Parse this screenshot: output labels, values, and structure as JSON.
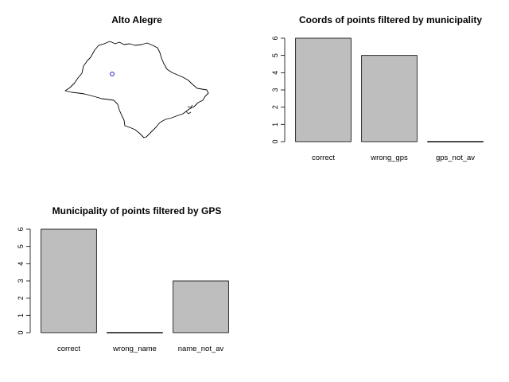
{
  "map_panel": {
    "title": "Alto Alegre"
  },
  "chart_data": [
    {
      "type": "bar",
      "title": "Coords of points filtered by municipality",
      "categories": [
        "correct",
        "wrong_gps",
        "gps_not_av"
      ],
      "values": [
        6,
        5,
        0
      ],
      "ylim": [
        0,
        6
      ],
      "yticks": [
        "0",
        "1",
        "2",
        "3",
        "4",
        "5",
        "6"
      ],
      "bar_color": "#bebebe"
    },
    {
      "type": "bar",
      "title": "Municipality of points filtered by GPS",
      "categories": [
        "correct",
        "wrong_name",
        "name_not_av"
      ],
      "values": [
        6,
        0,
        3
      ],
      "ylim": [
        0,
        6
      ],
      "yticks": [
        "0",
        "1",
        "2",
        "3",
        "4",
        "5",
        "6"
      ],
      "bar_color": "#bebebe"
    }
  ]
}
